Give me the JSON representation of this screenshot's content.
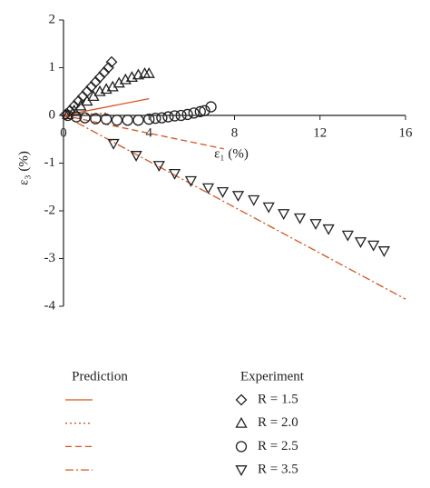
{
  "chart_data": {
    "type": "scatter",
    "x_label": "ε₁ (%)",
    "y_label": "ε₃ (%)",
    "xlim": [
      0,
      16
    ],
    "ylim": [
      -4,
      2
    ],
    "xticks": [
      0,
      4,
      8,
      12,
      16
    ],
    "yticks": [
      2,
      1,
      0,
      -1,
      -2,
      -3,
      -4
    ],
    "prediction_title": "Prediction",
    "experiment_title": "Experiment",
    "prediction_lines": [
      {
        "style": "solid",
        "color": "#d9541e",
        "x": [
          0,
          4
        ],
        "y": [
          0,
          0.35
        ]
      },
      {
        "style": "dotted",
        "color": "#d9541e",
        "x": [
          0,
          2
        ],
        "y": [
          0,
          0.05
        ]
      },
      {
        "style": "dashed",
        "color": "#d9541e",
        "x": [
          0,
          7.5
        ],
        "y": [
          0,
          -0.7
        ]
      },
      {
        "style": "dashdot",
        "color": "#d9541e",
        "x": [
          0,
          16
        ],
        "y": [
          0,
          -3.85
        ]
      }
    ],
    "series": [
      {
        "name": "R = 1.5",
        "marker": "diamond",
        "color": "#222222",
        "x": [
          0.1,
          0.3,
          0.5,
          0.7,
          0.9,
          1.1,
          1.3,
          1.5,
          1.7,
          1.9,
          2.1,
          2.25
        ],
        "values": [
          0.02,
          0.1,
          0.2,
          0.3,
          0.4,
          0.5,
          0.6,
          0.7,
          0.8,
          0.9,
          1.0,
          1.12
        ]
      },
      {
        "name": "R = 2.0",
        "marker": "triangle-up",
        "color": "#222222",
        "x": [
          0.2,
          0.5,
          0.8,
          1.1,
          1.4,
          1.7,
          2.0,
          2.3,
          2.6,
          2.9,
          3.2,
          3.5,
          3.8,
          4.0
        ],
        "values": [
          0.02,
          0.1,
          0.2,
          0.3,
          0.4,
          0.5,
          0.55,
          0.6,
          0.68,
          0.75,
          0.8,
          0.85,
          0.88,
          0.88
        ]
      },
      {
        "name": "R = 2.5",
        "marker": "circle",
        "color": "#222222",
        "x": [
          0.2,
          0.6,
          1.0,
          1.5,
          2.0,
          2.5,
          3.0,
          3.5,
          4.0,
          4.3,
          4.6,
          4.9,
          5.2,
          5.5,
          5.8,
          6.1,
          6.4,
          6.6,
          6.9
        ],
        "values": [
          0,
          -0.03,
          -0.05,
          -0.07,
          -0.08,
          -0.1,
          -0.1,
          -0.1,
          -0.08,
          -0.06,
          -0.05,
          -0.03,
          -0.01,
          0,
          0.02,
          0.05,
          0.08,
          0.1,
          0.18
        ]
      },
      {
        "name": "R = 3.5",
        "marker": "triangle-down",
        "color": "#222222",
        "x": [
          2.34,
          3.4,
          4.47,
          5.2,
          5.96,
          6.77,
          7.45,
          8.17,
          8.9,
          9.6,
          10.3,
          11.06,
          11.8,
          12.4,
          13.3,
          13.9,
          14.5,
          15.0
        ],
        "values": [
          -0.59,
          -0.84,
          -1.05,
          -1.22,
          -1.37,
          -1.52,
          -1.6,
          -1.68,
          -1.77,
          -1.92,
          -2.06,
          -2.15,
          -2.27,
          -2.38,
          -2.51,
          -2.65,
          -2.72,
          -2.84
        ]
      }
    ]
  }
}
